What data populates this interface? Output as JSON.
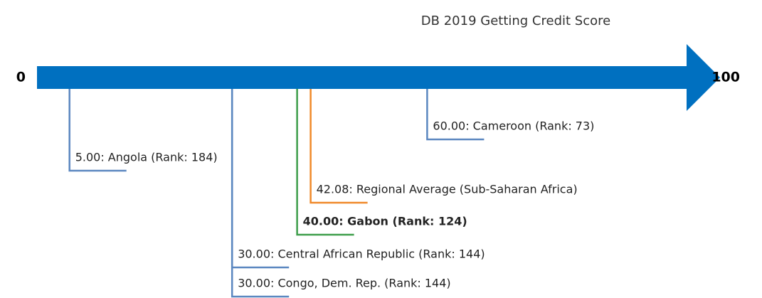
{
  "chart_data": {
    "type": "scale",
    "title": "DB 2019 Getting Credit Score",
    "xlim": [
      0,
      100
    ],
    "xticks": [
      0,
      100
    ],
    "bar_color": "#0070c0",
    "values": [
      60,
      5,
      42.08,
      40,
      30,
      30
    ],
    "labels": [
      "60.00: Cameroon (Rank: 73)",
      "5.00: Angola (Rank: 184)",
      "42.08: Regional Average (Sub-Saharan Africa)",
      "40.00: Gabon (Rank: 124)",
      "30.00: Central African Republic (Rank: 144)",
      "30.00: Congo, Dem. Rep. (Rank: 144)"
    ],
    "colors": [
      "#5b87c0",
      "#5b87c0",
      "#f0892a",
      "#3e9e4a",
      "#5b87c0",
      "#5b87c0"
    ],
    "bold": [
      false,
      false,
      false,
      true,
      false,
      false
    ]
  }
}
